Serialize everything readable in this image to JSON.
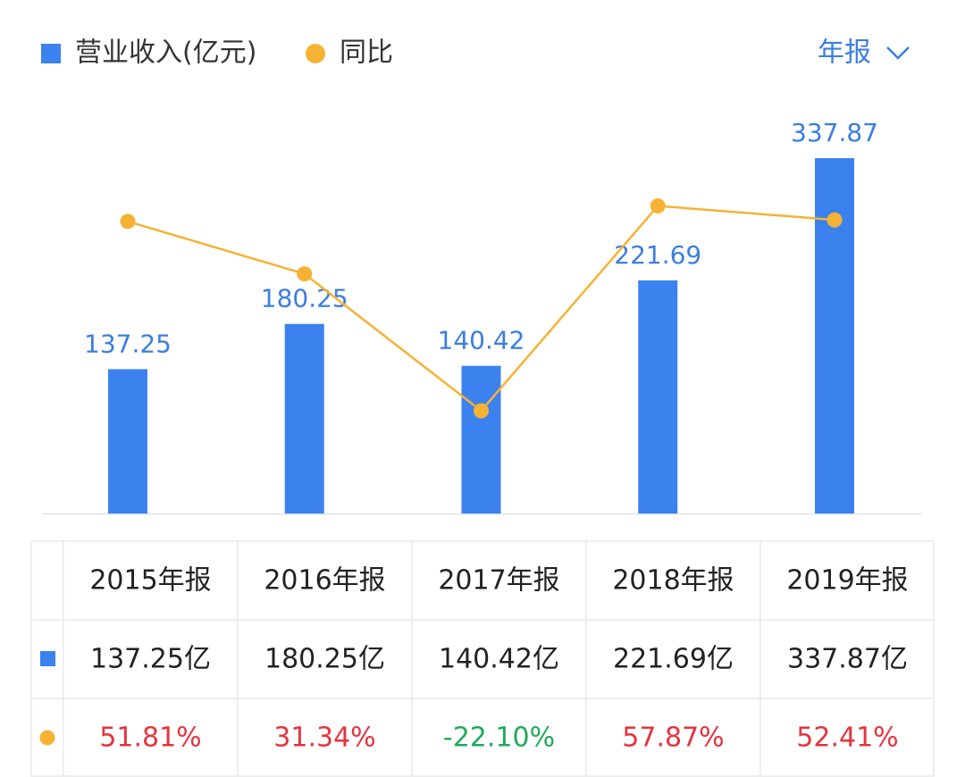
{
  "chart_data": {
    "type": "bar_line",
    "categories": [
      "2015年报",
      "2016年报",
      "2017年报",
      "2018年报",
      "2019年报"
    ],
    "series": [
      {
        "name": "营业收入(亿元)",
        "color": "#3b82ef",
        "values": [
          137.25,
          180.25,
          140.42,
          221.69,
          337.87
        ],
        "value_labels": [
          "137.25亿",
          "180.25亿",
          "140.42亿",
          "221.69亿",
          "337.87亿"
        ]
      },
      {
        "name": "同比",
        "color": "#f6b233",
        "axis": "y2",
        "values": [
          51.81,
          31.34,
          -22.1,
          57.87,
          52.41
        ],
        "value_labels": [
          "51.81%",
          "31.34%",
          "-22.10%",
          "57.87%",
          "52.41%"
        ]
      }
    ],
    "ylim": [
      0,
      360
    ],
    "y2lim": [
      -62.2,
      85.6
    ],
    "positive_color": "#e5333e",
    "negative_color": "#1faa5c"
  },
  "controls": {
    "period": "年报"
  }
}
